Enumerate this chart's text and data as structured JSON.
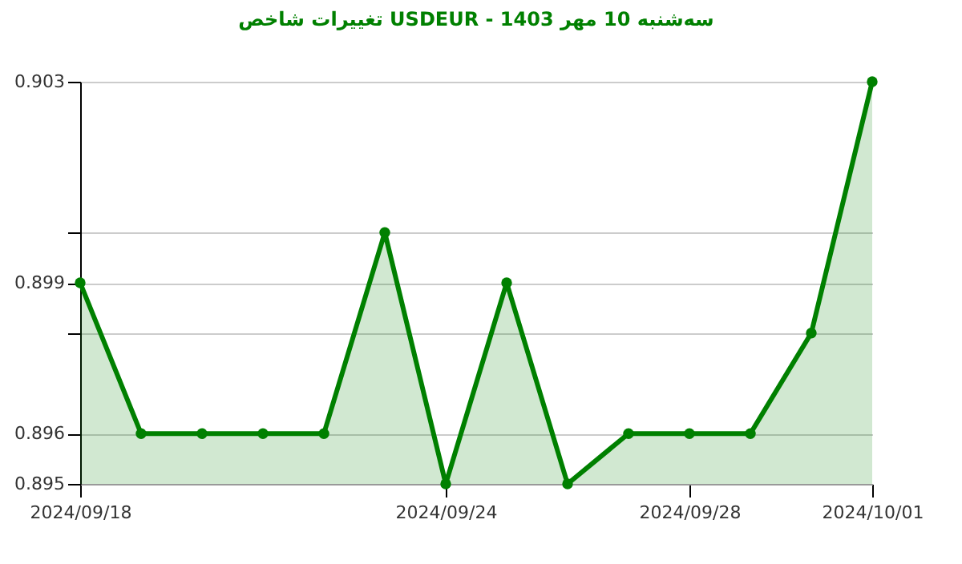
{
  "chart_data": {
    "type": "area",
    "title": "تغییرات شاخص USDEUR - سه‌شنبه  10 مهر 1403",
    "x": [
      "2024-09-18",
      "2024-09-19",
      "2024-09-20",
      "2024-09-21",
      "2024-09-22",
      "2024-09-23",
      "2024-09-24",
      "2024-09-25",
      "2024-09-26",
      "2024-09-27",
      "2024-09-28",
      "2024-09-29",
      "2024-09-30",
      "2024-10-01"
    ],
    "series": [
      {
        "color": "#008000",
        "values": [
          0.899,
          0.896,
          0.896,
          0.896,
          0.896,
          0.9,
          0.895,
          0.899,
          0.895,
          0.896,
          0.896,
          0.896,
          0.898,
          0.903
        ]
      }
    ],
    "xlim": [
      "2024-09-18",
      "2024-10-01"
    ],
    "xticks": [
      {
        "value": "2024-09-18",
        "label": "2024/09/18"
      },
      {
        "value": "2024-09-24",
        "label": "2024/09/24"
      },
      {
        "value": "2024-09-28",
        "label": "2024/09/28"
      },
      {
        "value": "2024-10-01",
        "label": "2024/10/01"
      }
    ],
    "ylim": [
      0.895,
      0.903
    ],
    "yticks": [
      0.895,
      0.896,
      {
        "value": 0.898,
        "label": null
      },
      0.899,
      {
        "value": 0.9,
        "label": null
      },
      0.903
    ],
    "grid": "y",
    "marker": "circle",
    "line_style": "solid"
  }
}
